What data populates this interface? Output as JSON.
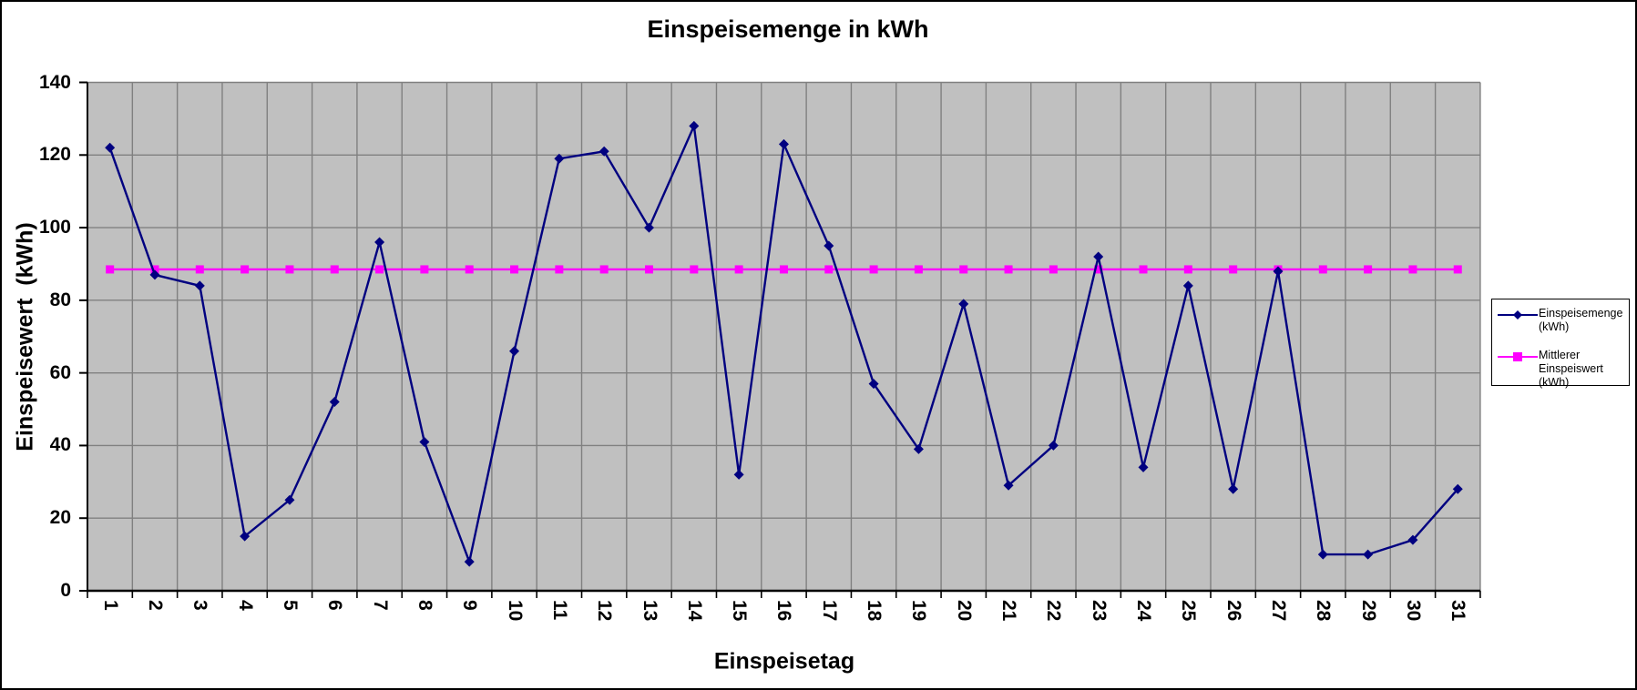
{
  "chart_data": {
    "type": "line",
    "title": "Einspeisemenge in kWh",
    "xlabel": "Einspeisetag",
    "ylabel": "Einspeisewert  (kWh)",
    "x": [
      1,
      2,
      3,
      4,
      5,
      6,
      7,
      8,
      9,
      10,
      11,
      12,
      13,
      14,
      15,
      16,
      17,
      18,
      19,
      20,
      21,
      22,
      23,
      24,
      25,
      26,
      27,
      28,
      29,
      30,
      31
    ],
    "series": [
      {
        "name": "Einspeisemenge (kWh)",
        "color": "#000080",
        "marker": "diamond",
        "values": [
          122,
          87,
          84,
          15,
          25,
          52,
          96,
          41,
          8,
          66,
          119,
          121,
          100,
          128,
          32,
          123,
          95,
          57,
          39,
          79,
          29,
          40,
          92,
          34,
          84,
          28,
          88,
          10,
          10,
          14,
          28
        ]
      },
      {
        "name": "Mittlerer Einspeiswert (kWh)",
        "color": "#FF00FF",
        "marker": "square",
        "constant_value": 88.5,
        "values": [
          88.5,
          88.5,
          88.5,
          88.5,
          88.5,
          88.5,
          88.5,
          88.5,
          88.5,
          88.5,
          88.5,
          88.5,
          88.5,
          88.5,
          88.5,
          88.5,
          88.5,
          88.5,
          88.5,
          88.5,
          88.5,
          88.5,
          88.5,
          88.5,
          88.5,
          88.5,
          88.5,
          88.5,
          88.5,
          88.5,
          88.5
        ]
      }
    ],
    "ylim": [
      0,
      140
    ],
    "y_ticks": [
      0,
      20,
      40,
      60,
      80,
      100,
      120,
      140
    ],
    "grid": true,
    "legend_position": "right",
    "colors": {
      "plot_background": "#C0C0C0",
      "gridline": "#808080",
      "axis": "#000000",
      "text": "#000000",
      "chart_border": "#000000"
    }
  },
  "legend": {
    "entries": [
      {
        "label": "Einspeisemenge (kWh)",
        "swatch_color": "#000080",
        "marker": "diamond"
      },
      {
        "label": "Mittlerer Einspeiswert (kWh)",
        "swatch_color": "#FF00FF",
        "marker": "square"
      }
    ]
  }
}
